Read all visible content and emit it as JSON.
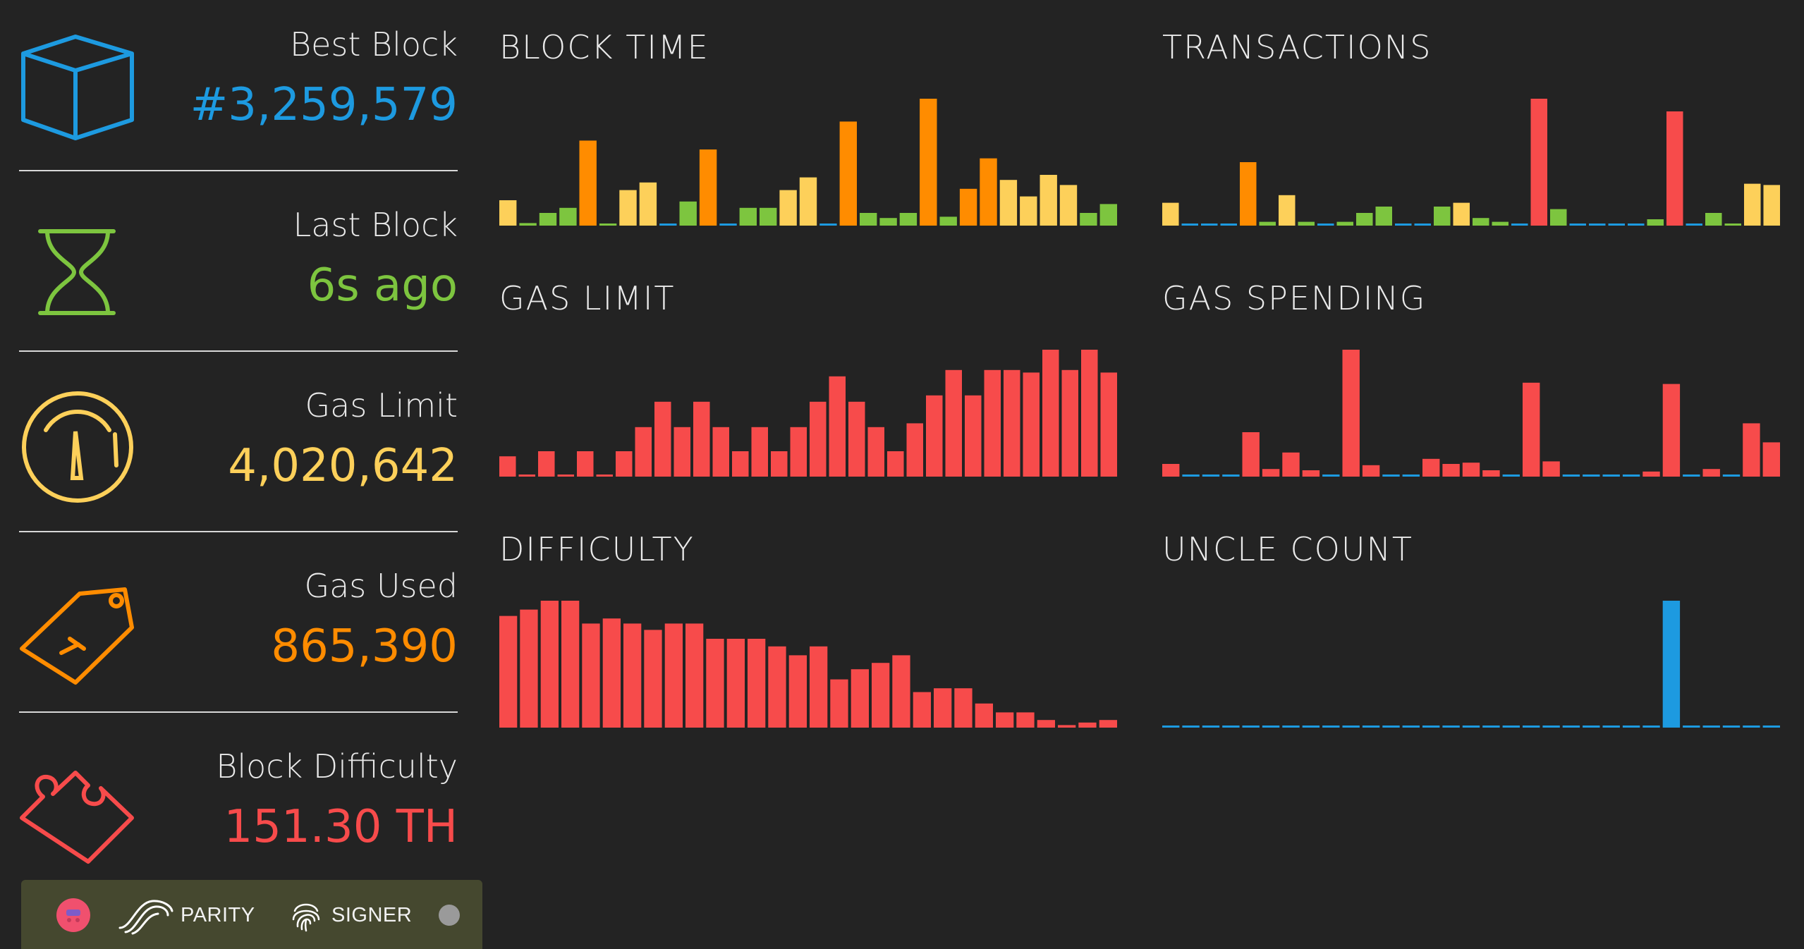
{
  "stats": [
    {
      "label": "Best Block",
      "value": "#3,259,579",
      "icon": "cube-icon",
      "color": "#1d9ae0"
    },
    {
      "label": "Last Block",
      "value": "6s ago",
      "icon": "hourglass-icon",
      "color": "#7dc53f"
    },
    {
      "label": "Gas Limit",
      "value": "4,020,642",
      "icon": "gauge-icon",
      "color": "#fdd05a"
    },
    {
      "label": "Gas Used",
      "value": "865,390",
      "icon": "price-tag-icon",
      "color": "#ff8c00"
    },
    {
      "label": "Block Difficulty",
      "value": "151.30 TH",
      "icon": "puzzle-piece-icon",
      "color": "#f74b4b"
    }
  ],
  "colors": {
    "blue": "#1d9ae0",
    "green": "#7dc53f",
    "yellow": "#fdd05a",
    "orange": "#ff8c00",
    "red": "#f74b4b",
    "background": "#232323"
  },
  "chart_data": [
    {
      "type": "bar",
      "title": "BLOCK TIME",
      "ylim": [
        0,
        100
      ],
      "values": [
        20,
        2,
        10,
        14,
        67,
        1,
        28,
        34,
        1,
        19,
        60,
        1,
        14,
        14,
        28,
        38,
        1,
        82,
        10,
        6,
        10,
        100,
        7,
        29,
        53,
        36,
        23,
        40,
        32,
        10,
        17
      ],
      "colors": [
        "yellow",
        "green",
        "green",
        "green",
        "orange",
        "green",
        "yellow",
        "yellow",
        "blue",
        "green",
        "orange",
        "blue",
        "green",
        "green",
        "yellow",
        "yellow",
        "blue",
        "orange",
        "green",
        "green",
        "green",
        "orange",
        "green",
        "orange",
        "orange",
        "yellow",
        "yellow",
        "yellow",
        "yellow",
        "green",
        "green"
      ]
    },
    {
      "type": "bar",
      "title": "TRANSACTIONS",
      "ylim": [
        0,
        100
      ],
      "values": [
        18,
        1,
        1,
        1,
        50,
        3,
        24,
        3,
        1,
        3,
        10,
        15,
        1,
        1,
        15,
        18,
        6,
        3,
        1,
        100,
        13,
        1,
        1,
        1,
        1,
        5,
        90,
        1,
        10,
        1,
        33,
        32
      ],
      "colors": [
        "yellow",
        "blue",
        "blue",
        "blue",
        "orange",
        "green",
        "yellow",
        "green",
        "blue",
        "green",
        "green",
        "green",
        "blue",
        "blue",
        "green",
        "yellow",
        "green",
        "green",
        "blue",
        "red",
        "green",
        "blue",
        "blue",
        "blue",
        "blue",
        "green",
        "red",
        "blue",
        "green",
        "green",
        "yellow",
        "yellow"
      ]
    },
    {
      "type": "bar",
      "title": "GAS LIMIT",
      "ylim": [
        0,
        100
      ],
      "values": [
        16,
        1,
        20,
        1,
        20,
        1,
        20,
        39,
        59,
        39,
        59,
        39,
        20,
        39,
        20,
        39,
        59,
        79,
        59,
        39,
        20,
        42,
        64,
        84,
        64,
        84,
        84,
        82,
        100,
        84,
        100,
        82
      ],
      "colors": [
        "red"
      ]
    },
    {
      "type": "bar",
      "title": "GAS SPENDING",
      "ylim": [
        0,
        100
      ],
      "values": [
        10,
        1,
        1,
        1,
        35,
        6,
        19,
        5,
        1,
        100,
        9,
        1,
        1,
        14,
        10,
        11,
        5,
        1,
        74,
        12,
        1,
        1,
        1,
        1,
        4,
        73,
        1,
        6,
        1,
        42,
        27
      ],
      "colors": [
        "red",
        "blue",
        "blue",
        "blue",
        "red",
        "red",
        "red",
        "red",
        "blue",
        "red",
        "red",
        "blue",
        "blue",
        "red",
        "red",
        "red",
        "red",
        "blue",
        "red",
        "red",
        "blue",
        "blue",
        "blue",
        "blue",
        "red",
        "red",
        "blue",
        "red",
        "blue",
        "red",
        "red"
      ]
    },
    {
      "type": "bar",
      "title": "DIFFICULTY",
      "ylim": [
        0,
        100
      ],
      "values": [
        88,
        93,
        100,
        100,
        82,
        86,
        82,
        77,
        82,
        82,
        70,
        70,
        70,
        64,
        57,
        64,
        38,
        46,
        51,
        57,
        28,
        31,
        31,
        19,
        12,
        12,
        6,
        2,
        4,
        6
      ],
      "colors": [
        "red"
      ]
    },
    {
      "type": "bar",
      "title": "UNCLE COUNT",
      "ylim": [
        0,
        1
      ],
      "values": [
        0,
        0,
        0,
        0,
        0,
        0,
        0,
        0,
        0,
        0,
        0,
        0,
        0,
        0,
        0,
        0,
        0,
        0,
        0,
        0,
        0,
        0,
        0,
        0,
        0,
        1,
        0,
        0,
        0,
        0,
        0
      ],
      "colors": [
        "blue"
      ]
    }
  ],
  "footer": {
    "parity_label": "PARITY",
    "signer_label": "SIGNER"
  }
}
